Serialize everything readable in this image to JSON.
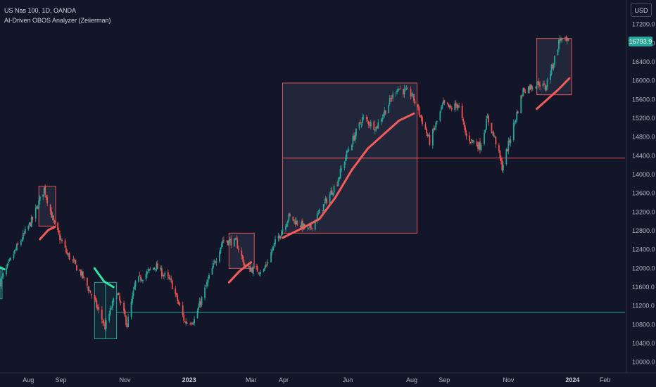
{
  "legend": {
    "symbol_line": "US Nas 100, 1D, OANDA",
    "indicator_line": "AI-Driven OBOS Analyzer (Zeiierman)"
  },
  "currency_label": "USD",
  "last_price_label": "16793.9",
  "colors": {
    "background": "#131629",
    "up": "#26a69a",
    "down": "#ef5350",
    "overbought_line": "#f25c5c",
    "oversold_line": "#2ee6a6",
    "ob_box_border": "#d9575b",
    "os_box_border": "#26a69a"
  },
  "chart_data": {
    "type": "candlestick",
    "ylim": [
      9800,
      17600
    ],
    "y_ticks": [
      10000,
      10400,
      10800,
      11200,
      11600,
      12000,
      12400,
      12800,
      13200,
      13600,
      14000,
      14400,
      14800,
      15200,
      15600,
      16000,
      16400,
      16800,
      17200
    ],
    "y_tick_labels": [
      "10000.0",
      "10400.0",
      "10800.0",
      "11200.0",
      "11600.0",
      "12000.0",
      "12400.0",
      "12800.0",
      "13200.0",
      "13600.0",
      "14000.0",
      "14400.0",
      "14800.0",
      "15200.0",
      "15600.0",
      "16000.0",
      "16400.0",
      "16800.0",
      "17200.0"
    ],
    "x_range": [
      "2022-07-05",
      "2024-02-20"
    ],
    "x_labels": [
      {
        "date": "2022-08-01",
        "label": "Aug",
        "bold": false
      },
      {
        "date": "2022-09-01",
        "label": "Sep",
        "bold": false
      },
      {
        "date": "2022-11-01",
        "label": "Nov",
        "bold": false
      },
      {
        "date": "2023-01-01",
        "label": "2023",
        "bold": true
      },
      {
        "date": "2023-03-01",
        "label": "Mar",
        "bold": false
      },
      {
        "date": "2023-04-01",
        "label": "Apr",
        "bold": false
      },
      {
        "date": "2023-06-01",
        "label": "Jun",
        "bold": false
      },
      {
        "date": "2023-08-01",
        "label": "Aug",
        "bold": false
      },
      {
        "date": "2023-09-01",
        "label": "Sep",
        "bold": false
      },
      {
        "date": "2023-11-01",
        "label": "Nov",
        "bold": false
      },
      {
        "date": "2024-01-01",
        "label": "2024",
        "bold": true
      },
      {
        "date": "2024-02-01",
        "label": "Feb",
        "bold": false
      }
    ],
    "price_path": [
      [
        "2022-07-05",
        11700
      ],
      [
        "2022-07-20",
        12400
      ],
      [
        "2022-08-05",
        13050
      ],
      [
        "2022-08-16",
        13700
      ],
      [
        "2022-08-26",
        12900
      ],
      [
        "2022-09-07",
        12300
      ],
      [
        "2022-09-20",
        11900
      ],
      [
        "2022-10-03",
        11300
      ],
      [
        "2022-10-13",
        10750
      ],
      [
        "2022-10-24",
        11500
      ],
      [
        "2022-11-03",
        10800
      ],
      [
        "2022-11-11",
        11700
      ],
      [
        "2022-11-30",
        12050
      ],
      [
        "2022-12-15",
        11700
      ],
      [
        "2022-12-28",
        10850
      ],
      [
        "2023-01-06",
        10900
      ],
      [
        "2023-01-20",
        11800
      ],
      [
        "2023-02-02",
        12600
      ],
      [
        "2023-02-15",
        12550
      ],
      [
        "2023-02-24",
        12000
      ],
      [
        "2023-03-13",
        11950
      ],
      [
        "2023-03-24",
        12550
      ],
      [
        "2023-04-06",
        13100
      ],
      [
        "2023-04-25",
        12800
      ],
      [
        "2023-05-08",
        13300
      ],
      [
        "2023-05-22",
        13850
      ],
      [
        "2023-06-01",
        14500
      ],
      [
        "2023-06-15",
        15200
      ],
      [
        "2023-06-28",
        15000
      ],
      [
        "2023-07-18",
        15850
      ],
      [
        "2023-08-01",
        15700
      ],
      [
        "2023-08-10",
        15200
      ],
      [
        "2023-08-18",
        14700
      ],
      [
        "2023-08-31",
        15500
      ],
      [
        "2023-09-07",
        15400
      ],
      [
        "2023-09-14",
        15500
      ],
      [
        "2023-09-22",
        14800
      ],
      [
        "2023-10-05",
        14600
      ],
      [
        "2023-10-12",
        15200
      ],
      [
        "2023-10-20",
        14700
      ],
      [
        "2023-10-26",
        14150
      ],
      [
        "2023-11-03",
        14800
      ],
      [
        "2023-11-15",
        15800
      ],
      [
        "2023-11-30",
        15950
      ],
      [
        "2023-12-06",
        15850
      ],
      [
        "2023-12-14",
        16400
      ],
      [
        "2023-12-20",
        16900
      ],
      [
        "2023-12-28",
        16800
      ]
    ],
    "overbought_ma": [
      {
        "points": [
          [
            "2022-08-12",
            12620
          ],
          [
            "2022-08-20",
            12820
          ],
          [
            "2022-08-26",
            12880
          ]
        ]
      },
      {
        "points": [
          [
            "2023-02-08",
            11700
          ],
          [
            "2023-02-18",
            11940
          ],
          [
            "2023-03-01",
            12130
          ]
        ]
      },
      {
        "points": [
          [
            "2023-03-31",
            12650
          ],
          [
            "2023-04-20",
            12870
          ],
          [
            "2023-05-05",
            13050
          ],
          [
            "2023-05-20",
            13500
          ],
          [
            "2023-06-05",
            14100
          ],
          [
            "2023-06-20",
            14550
          ],
          [
            "2023-07-05",
            14850
          ],
          [
            "2023-07-20",
            15150
          ],
          [
            "2023-08-03",
            15300
          ]
        ]
      },
      {
        "points": [
          [
            "2023-11-28",
            15400
          ],
          [
            "2023-12-08",
            15600
          ],
          [
            "2023-12-18",
            15800
          ],
          [
            "2023-12-29",
            16050
          ]
        ]
      }
    ],
    "oversold_ma": [
      {
        "points": [
          [
            "2022-07-05",
            12020
          ],
          [
            "2022-07-09",
            11980
          ]
        ]
      },
      {
        "points": [
          [
            "2022-10-03",
            12000
          ],
          [
            "2022-10-12",
            11720
          ],
          [
            "2022-10-21",
            11600
          ]
        ]
      }
    ],
    "overbought_boxes": [
      {
        "x0": "2022-08-11",
        "x1": "2022-08-27",
        "y0": 12900,
        "y1": 13750
      },
      {
        "x0": "2023-02-08",
        "x1": "2023-03-04",
        "y0": 12000,
        "y1": 12750
      },
      {
        "x0": "2023-03-31",
        "x1": "2023-08-06",
        "y0": 12750,
        "y1": 15950
      },
      {
        "x0": "2023-11-28",
        "x1": "2023-12-31",
        "y0": 15700,
        "y1": 16900
      }
    ],
    "oversold_boxes": [
      {
        "x0": "2022-07-05",
        "x1": "2022-07-07",
        "y0": 11350,
        "y1": 12000
      },
      {
        "x0": "2022-10-03",
        "x1": "2022-10-24",
        "y0": 10500,
        "y1": 11700
      }
    ],
    "hlines": [
      {
        "y": 14350,
        "x0": "2023-04-02",
        "color": "ob"
      },
      {
        "y": 11060,
        "x0": "2022-10-24",
        "color": "os"
      }
    ]
  }
}
